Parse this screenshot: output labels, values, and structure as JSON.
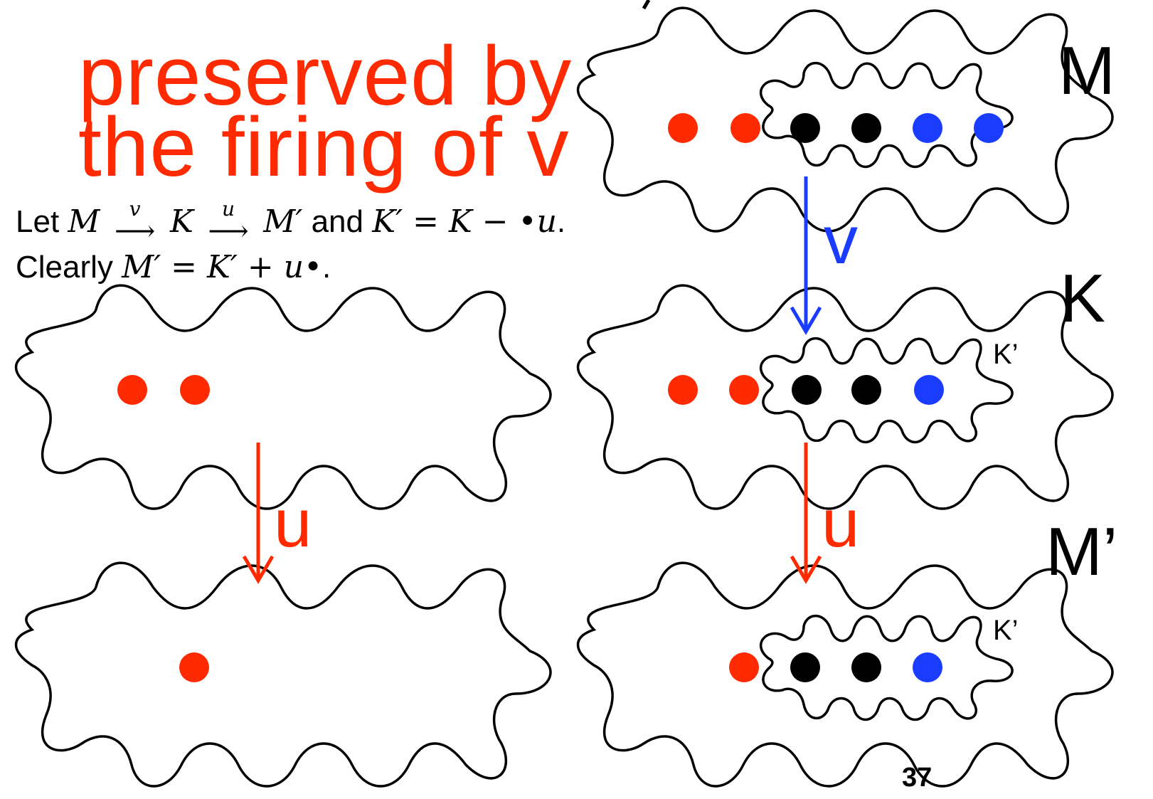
{
  "slide": {
    "title_lines": [
      "preserved by",
      "the firing of v"
    ],
    "math": {
      "line1": {
        "let": "Let",
        "M": "M",
        "v": "v",
        "K": "K",
        "u": "u",
        "Mprime": "M′",
        "and": "and",
        "Kprime_def": "K′ = K − •u",
        "end": "."
      },
      "line2": {
        "clearly": "Clearly",
        "expr": "M′ = K′ + u•",
        "end": "."
      }
    },
    "labels": {
      "M": "M",
      "K": "K",
      "Mprime": "M’",
      "Kprime_1": "K’",
      "Kprime_2": "K’"
    },
    "arrows": {
      "v": "v",
      "u_left": "u",
      "u_right": "u"
    },
    "page_number": "37",
    "colors": {
      "red": "#ff2a00",
      "blue": "#1a3cff",
      "black": "#000000"
    }
  }
}
